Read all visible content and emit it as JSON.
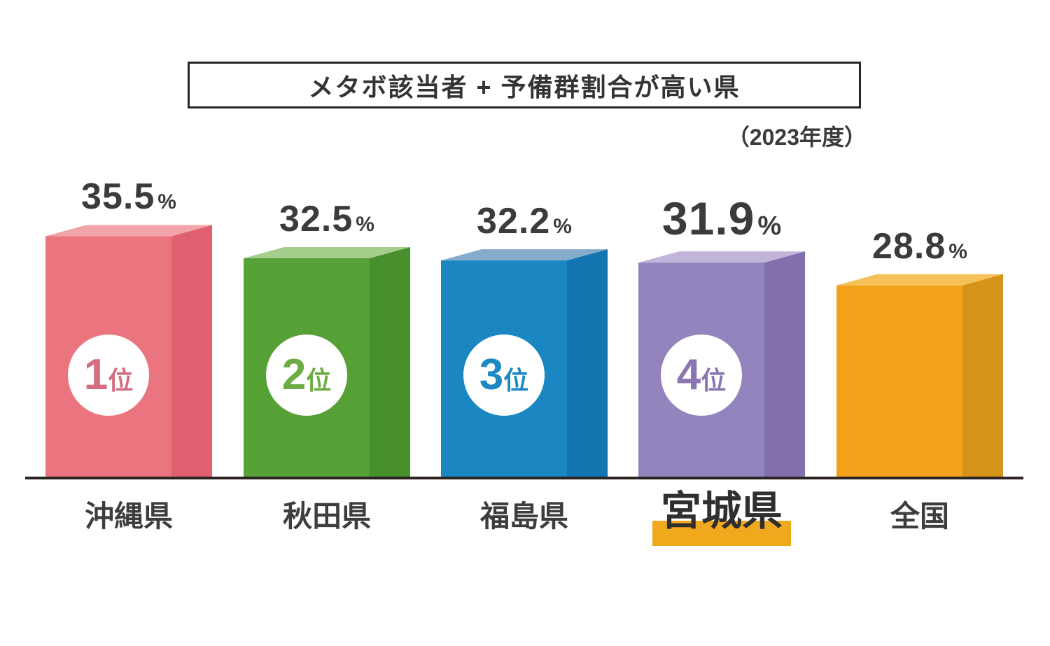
{
  "chart_data": {
    "type": "bar",
    "title": "メタボ該当者 + 予備群割合が高い県",
    "subtitle": "（2023年度）",
    "unit": "%",
    "categories": [
      "沖縄県",
      "秋田県",
      "福島県",
      "宮城県",
      "全国"
    ],
    "values": [
      35.5,
      32.5,
      32.2,
      31.9,
      28.8
    ],
    "rank_labels": [
      "1位",
      "2位",
      "3位",
      "4位",
      null
    ],
    "emphasized_category": "宮城県",
    "legend_position": "none",
    "value_axis_visible": false,
    "axis_color": "#2b2422",
    "value_text_color": "#3b3b3b",
    "category_text_color": "#3d3d3d",
    "category_highlight_color": "#f0a81c",
    "bars": [
      {
        "category": "沖縄県",
        "value": 35.5,
        "rank": "1",
        "rank_suffix": "位",
        "color_front": "#eb757e",
        "color_top": "#f3a4aa",
        "color_side": "#e06070",
        "rank_text_color": "#d56e80",
        "emphasized": false
      },
      {
        "category": "秋田県",
        "value": 32.5,
        "rank": "2",
        "rank_suffix": "位",
        "color_front": "#55a136",
        "color_top": "#a5cd8c",
        "color_side": "#48902c",
        "rank_text_color": "#6cac42",
        "emphasized": false
      },
      {
        "category": "福島県",
        "value": 32.2,
        "rank": "3",
        "rank_suffix": "位",
        "color_front": "#1a87c3",
        "color_top": "#87accb",
        "color_side": "#1376b1",
        "rank_text_color": "#1e88c2",
        "emphasized": false
      },
      {
        "category": "宮城県",
        "value": 31.9,
        "rank": "4",
        "rank_suffix": "位",
        "color_front": "#9384bd",
        "color_top": "#c0b4da",
        "color_side": "#8170ac",
        "rank_text_color": "#8a76b1",
        "emphasized": true
      },
      {
        "category": "全国",
        "value": 28.8,
        "rank": null,
        "rank_suffix": "",
        "color_front": "#f2a11b",
        "color_top": "#f6c158",
        "color_side": "#d6931a",
        "rank_text_color": null,
        "emphasized": false
      }
    ]
  }
}
